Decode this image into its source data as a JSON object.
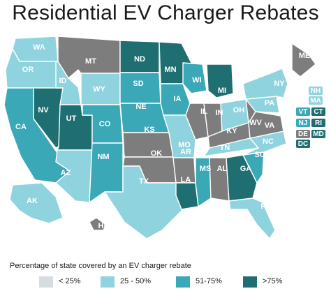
{
  "title": "Residential EV Charger Rebates",
  "colors": {
    "lt25": "#d5dde0",
    "c25_50": "#8fd3de",
    "c51_75": "#3aa8b6",
    "gt75": "#1f6f72",
    "nodata": "#7d7d7d"
  },
  "states": [
    {
      "abbr": "WA",
      "category": "c25_50"
    },
    {
      "abbr": "OR",
      "category": "c25_50"
    },
    {
      "abbr": "CA",
      "category": "c51_75"
    },
    {
      "abbr": "NV",
      "category": "gt75"
    },
    {
      "abbr": "ID",
      "category": "c25_50"
    },
    {
      "abbr": "UT",
      "category": "gt75"
    },
    {
      "abbr": "AZ",
      "category": "c25_50"
    },
    {
      "abbr": "MT",
      "category": "nodata"
    },
    {
      "abbr": "WY",
      "category": "c25_50"
    },
    {
      "abbr": "CO",
      "category": "c51_75"
    },
    {
      "abbr": "NM",
      "category": "c51_75"
    },
    {
      "abbr": "ND",
      "category": "gt75"
    },
    {
      "abbr": "SD",
      "category": "c51_75"
    },
    {
      "abbr": "NE",
      "category": "c51_75"
    },
    {
      "abbr": "KS",
      "category": "nodata"
    },
    {
      "abbr": "OK",
      "category": "nodata"
    },
    {
      "abbr": "TX",
      "category": "c25_50"
    },
    {
      "abbr": "MN",
      "category": "gt75"
    },
    {
      "abbr": "IA",
      "category": "c51_75"
    },
    {
      "abbr": "MO",
      "category": "c25_50"
    },
    {
      "abbr": "AR",
      "category": "nodata"
    },
    {
      "abbr": "LA",
      "category": "gt75"
    },
    {
      "abbr": "WI",
      "category": "c51_75"
    },
    {
      "abbr": "IL",
      "category": "nodata"
    },
    {
      "abbr": "MI",
      "category": "gt75"
    },
    {
      "abbr": "IN",
      "category": "nodata"
    },
    {
      "abbr": "OH",
      "category": "c25_50"
    },
    {
      "abbr": "KY",
      "category": "nodata"
    },
    {
      "abbr": "TN",
      "category": "c25_50"
    },
    {
      "abbr": "MS",
      "category": "c51_75"
    },
    {
      "abbr": "AL",
      "category": "nodata"
    },
    {
      "abbr": "GA",
      "category": "gt75"
    },
    {
      "abbr": "FL",
      "category": "c25_50"
    },
    {
      "abbr": "SC",
      "category": "c51_75"
    },
    {
      "abbr": "NC",
      "category": "c25_50"
    },
    {
      "abbr": "VA",
      "category": "nodata"
    },
    {
      "abbr": "WV",
      "category": "nodata"
    },
    {
      "abbr": "PA",
      "category": "c25_50"
    },
    {
      "abbr": "NY",
      "category": "c25_50"
    },
    {
      "abbr": "ME",
      "category": "nodata"
    },
    {
      "abbr": "AK",
      "category": "c25_50"
    },
    {
      "abbr": "HI",
      "category": "nodata"
    }
  ],
  "small_states": [
    {
      "abbr": "NH",
      "category": "c25_50"
    },
    {
      "abbr": "MA",
      "category": "c25_50"
    },
    {
      "abbr": "VT",
      "category": "c51_75"
    },
    {
      "abbr": "CT",
      "category": "gt75"
    },
    {
      "abbr": "NJ",
      "category": "c51_75"
    },
    {
      "abbr": "RI",
      "category": "gt75"
    },
    {
      "abbr": "DE",
      "category": "nodata"
    },
    {
      "abbr": "MD",
      "category": "gt75"
    },
    {
      "abbr": "DC",
      "category": "gt75"
    }
  ],
  "legend": {
    "title": "Percentage of state covered by an EV charger rebate",
    "items": [
      {
        "label": "< 25%",
        "color": "#d5dde0"
      },
      {
        "label": "25 - 50%",
        "color": "#8fd3de"
      },
      {
        "label": "51-75%",
        "color": "#3aa8b6"
      },
      {
        "label": ">75%",
        "color": "#1f6f72"
      }
    ]
  }
}
